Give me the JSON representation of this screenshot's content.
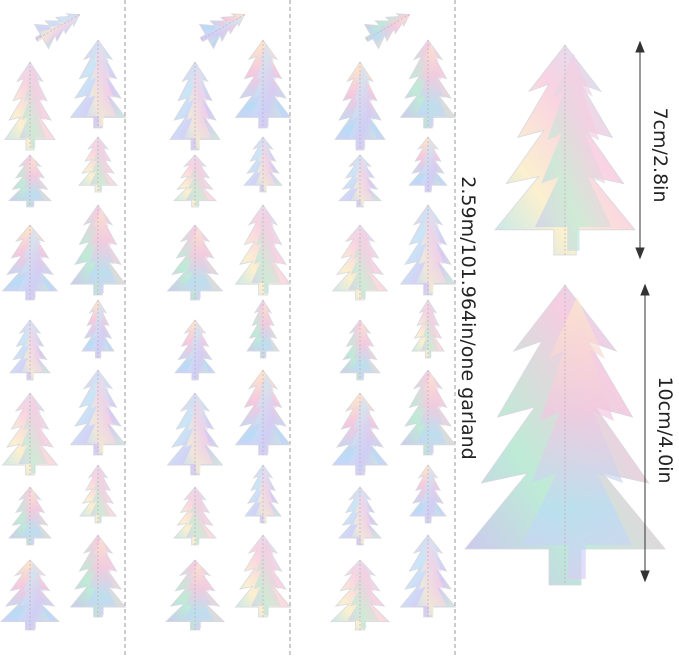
{
  "labels": {
    "garland_length": "2.59m/101.964in/one garland",
    "small_tree_height": "7cm/2.8in",
    "large_tree_height": "10cm/4.0in"
  }
}
